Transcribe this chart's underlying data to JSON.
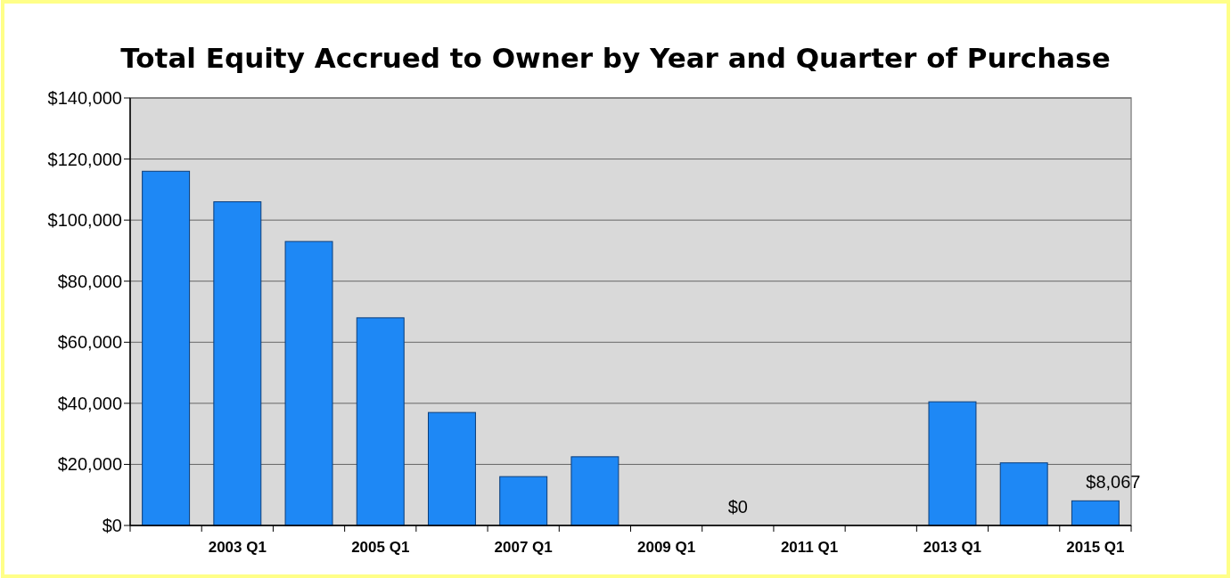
{
  "chart_data": {
    "type": "bar",
    "title": "Total Equity Accrued to Owner by Year and Quarter of Purchase",
    "categories": [
      null,
      "2003 Q1",
      null,
      "2005 Q1",
      null,
      "2007 Q1",
      null,
      "2009 Q1",
      null,
      "2011 Q1",
      null,
      "2013 Q1",
      null,
      "2015 Q1"
    ],
    "values": [
      116000,
      106000,
      93000,
      68000,
      37000,
      16000,
      22500,
      0,
      0,
      0,
      0,
      40500,
      20500,
      8067
    ],
    "value_labels": [
      null,
      null,
      null,
      null,
      null,
      null,
      null,
      null,
      "$0",
      null,
      null,
      null,
      null,
      "$8,067"
    ],
    "color": "#1e88f5",
    "ylim": [
      0,
      140000
    ],
    "yticks": [
      {
        "value": 0,
        "label": "$0"
      },
      {
        "value": 20000,
        "label": "$20,000"
      },
      {
        "value": 40000,
        "label": "$40,000"
      },
      {
        "value": 60000,
        "label": "$60,000"
      },
      {
        "value": 80000,
        "label": "$80,000"
      },
      {
        "value": 100000,
        "label": "$100,000"
      },
      {
        "value": 120000,
        "label": "$120,000"
      },
      {
        "value": 140000,
        "label": "$140,000"
      }
    ],
    "grid": "y"
  }
}
